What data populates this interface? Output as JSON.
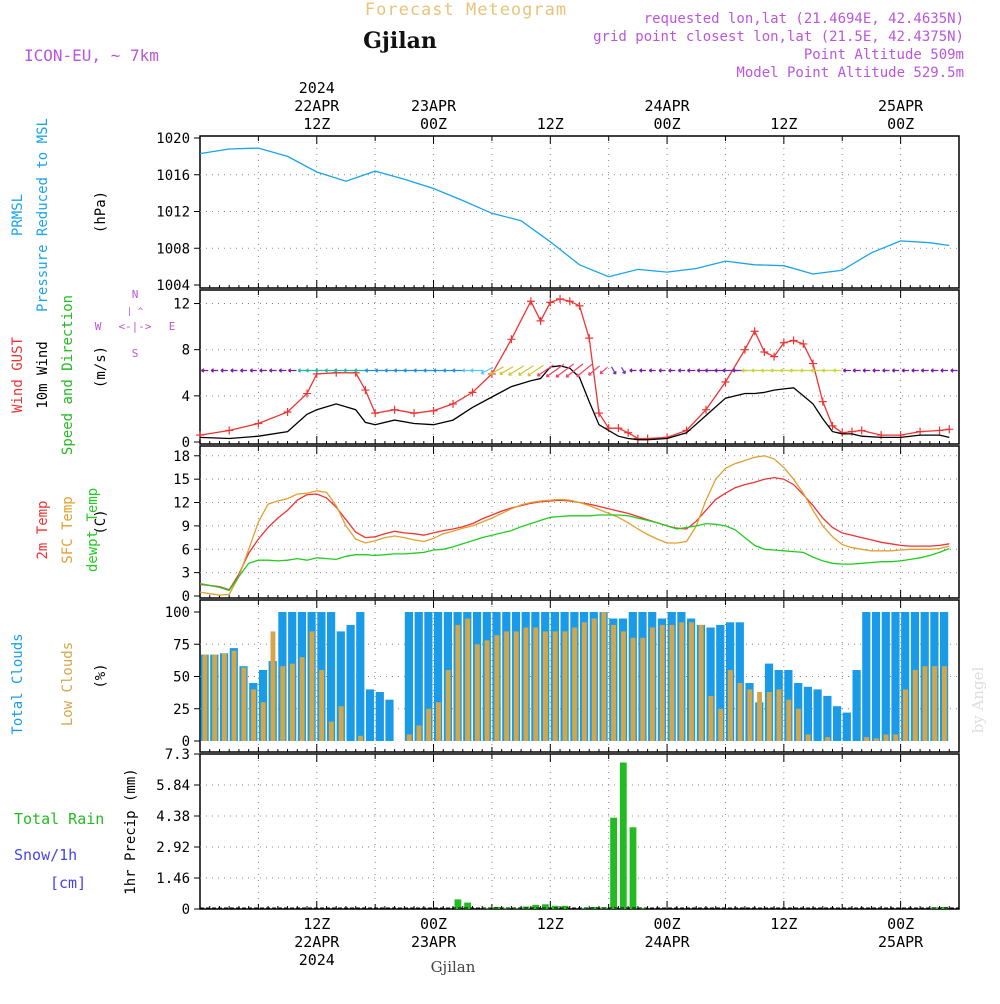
{
  "header": {
    "product_title": "Forecast Meteogram",
    "location": "Gjilan",
    "model": "ICON-EU, ~ 7km",
    "requested_point": "requested lon,lat (21.4694E, 42.4635N)",
    "grid_point": "grid point closest lon,lat (21.5E, 42.4375N)",
    "point_altitude": "Point Altitude 509m",
    "model_altitude": "Model Point Altitude 529.5m",
    "footer_location": "Gjilan",
    "credit": "by Angel"
  },
  "colors": {
    "pressure": "#1aa3e8",
    "wind_gust": "#ee3333",
    "wind_speed": "#000000",
    "direction_label": "#22bb22",
    "t2m": "#ee3333",
    "sfc": "#e0a030",
    "dewpoint": "#22cc22",
    "total_clouds": "#1a9be8",
    "low_clouds": "#d4a64a",
    "rain": "#22bb22",
    "snow_label": "#4444ee",
    "meta": "#bb55dd",
    "title_faded": "#e8c47a",
    "compass": "#bb55dd"
  },
  "time_axis": {
    "labels_top": [
      {
        "t": 12,
        "lines": [
          "2024",
          "22APR",
          "12Z"
        ]
      },
      {
        "t": 24,
        "lines": [
          "23APR",
          "00Z"
        ]
      },
      {
        "t": 36,
        "lines": [
          "12Z"
        ]
      },
      {
        "t": 48,
        "lines": [
          "24APR",
          "00Z"
        ]
      },
      {
        "t": 60,
        "lines": [
          "12Z"
        ]
      },
      {
        "t": 72,
        "lines": [
          "25APR",
          "00Z"
        ]
      }
    ],
    "labels_bottom": [
      {
        "t": 12,
        "lines": [
          "12Z",
          "22APR",
          "2024"
        ]
      },
      {
        "t": 24,
        "lines": [
          "00Z",
          "23APR"
        ]
      },
      {
        "t": 36,
        "lines": [
          "12Z"
        ]
      },
      {
        "t": 48,
        "lines": [
          "00Z",
          "24APR"
        ]
      },
      {
        "t": 60,
        "lines": [
          "12Z"
        ]
      },
      {
        "t": 72,
        "lines": [
          "00Z",
          "25APR"
        ]
      }
    ]
  },
  "compass": {
    "n": "N",
    "s": "S",
    "e": "E",
    "w": "W"
  },
  "chart_data": [
    {
      "type": "line",
      "title": "",
      "left_labels": [
        [
          "PRMSL"
        ],
        [
          "Pressure Reduced to MSL"
        ]
      ],
      "ylabel": "(hPa)",
      "x_hours": [
        0,
        3,
        6,
        9,
        12,
        15,
        18,
        21,
        24,
        27,
        30,
        33,
        36,
        39,
        42,
        45,
        48,
        51,
        54,
        57,
        60,
        63,
        66,
        69,
        72,
        75,
        77
      ],
      "series": [
        {
          "values": [
            1018.3,
            1018.8,
            1018.9,
            1018.0,
            1016.3,
            1015.3,
            1016.4,
            1015.5,
            1014.5,
            1013.2,
            1011.8,
            1011.0,
            1008.7,
            1006.2,
            1004.9,
            1005.7,
            1005.4,
            1005.8,
            1006.6,
            1006.2,
            1006.1,
            1005.2,
            1005.6,
            1007.5,
            1008.8,
            1008.6,
            1008.3
          ]
        }
      ],
      "ylim": [
        1004,
        1020
      ],
      "yticks": [
        1004,
        1008,
        1012,
        1016,
        1020
      ],
      "grid": true
    },
    {
      "type": "line",
      "title": "",
      "left_labels": [
        [
          "Wind GUST"
        ],
        [
          "10m Wind"
        ],
        [
          "Speed and Direction"
        ]
      ],
      "ylabel": "(m/s)",
      "x_hours": [
        0,
        3,
        6,
        9,
        11,
        12,
        14,
        16,
        17,
        18,
        20,
        22,
        24,
        26,
        28,
        30,
        32,
        34,
        35,
        36,
        37,
        38,
        39,
        40,
        41,
        42,
        43,
        44,
        45,
        46,
        48,
        50,
        52,
        54,
        56,
        57,
        58,
        59,
        60,
        61,
        62,
        63,
        64,
        65,
        66,
        67,
        68,
        70,
        72,
        74,
        76,
        77
      ],
      "series": [
        {
          "name": "Wind GUST",
          "values": [
            0.6,
            1.0,
            1.6,
            2.6,
            4.2,
            5.9,
            6.0,
            6.0,
            4.5,
            2.5,
            2.8,
            2.5,
            2.7,
            3.3,
            4.3,
            5.9,
            8.9,
            12.2,
            10.5,
            12.1,
            12.4,
            12.2,
            11.8,
            9.0,
            2.5,
            1.2,
            1.2,
            0.8,
            0.3,
            0.3,
            0.4,
            1.0,
            2.8,
            5.2,
            8.0,
            9.6,
            7.8,
            7.4,
            8.6,
            8.8,
            8.5,
            6.8,
            3.5,
            1.4,
            0.8,
            0.9,
            1.0,
            0.6,
            0.6,
            0.9,
            1.0,
            1.1
          ]
        },
        {
          "name": "10m Wind",
          "values": [
            0.4,
            0.3,
            0.5,
            0.9,
            2.4,
            2.8,
            3.3,
            2.8,
            1.7,
            1.5,
            1.9,
            1.6,
            1.5,
            1.9,
            3.0,
            3.9,
            4.8,
            5.3,
            5.5,
            6.5,
            6.6,
            6.4,
            5.6,
            3.5,
            1.5,
            1.0,
            0.5,
            0.3,
            0.2,
            0.2,
            0.3,
            0.8,
            2.3,
            3.8,
            4.2,
            4.2,
            4.3,
            4.5,
            4.6,
            4.7,
            4.0,
            3.3,
            2.0,
            0.9,
            0.7,
            0.7,
            0.5,
            0.4,
            0.4,
            0.6,
            0.6,
            0.4
          ]
        }
      ],
      "ylim": [
        0,
        13
      ],
      "yticks": [
        0,
        4,
        8,
        12
      ],
      "grid": true
    },
    {
      "type": "line",
      "title": "",
      "left_labels": [
        [
          "2m Temp"
        ],
        [
          "SFC Temp"
        ],
        [
          "dewpt Temp"
        ]
      ],
      "ylabel": "(C)",
      "x_hours": [
        0,
        2,
        3,
        4,
        5,
        6,
        7,
        8,
        9,
        10,
        11,
        12,
        13,
        14,
        15,
        16,
        17,
        18,
        19,
        20,
        21,
        22,
        23,
        24,
        25,
        26,
        27,
        28,
        29,
        30,
        31,
        32,
        33,
        34,
        35,
        36,
        37,
        38,
        39,
        40,
        41,
        42,
        43,
        44,
        45,
        46,
        47,
        48,
        49,
        50,
        51,
        52,
        53,
        54,
        55,
        56,
        57,
        58,
        59,
        60,
        61,
        62,
        63,
        64,
        65,
        66,
        67,
        68,
        69,
        70,
        71,
        72,
        73,
        74,
        75,
        76,
        77
      ],
      "series": [
        {
          "name": "2m Temp",
          "values": [
            1.5,
            1.2,
            0.8,
            2.8,
            5.5,
            7.3,
            8.8,
            10.0,
            11.0,
            12.3,
            13.0,
            13.1,
            12.6,
            11.4,
            9.8,
            8.2,
            7.5,
            7.6,
            8.0,
            8.3,
            8.1,
            8.0,
            7.8,
            8.1,
            8.4,
            8.6,
            8.9,
            9.3,
            9.9,
            10.4,
            10.9,
            11.3,
            11.6,
            11.9,
            12.1,
            12.2,
            12.3,
            12.2,
            12.0,
            11.8,
            11.5,
            11.2,
            10.9,
            10.6,
            10.2,
            9.8,
            9.4,
            9.0,
            8.7,
            8.6,
            9.6,
            11.0,
            12.4,
            13.2,
            13.9,
            14.3,
            14.6,
            15.0,
            15.2,
            15.0,
            14.3,
            13.0,
            11.6,
            10.0,
            8.8,
            8.1,
            7.8,
            7.5,
            7.2,
            6.9,
            6.7,
            6.5,
            6.4,
            6.4,
            6.4,
            6.5,
            6.7
          ]
        },
        {
          "name": "SFC Temp",
          "values": [
            0.5,
            0.1,
            0.2,
            2.5,
            6.0,
            9.5,
            11.8,
            12.2,
            12.5,
            13.1,
            13.2,
            13.5,
            13.3,
            11.6,
            9.0,
            7.3,
            6.8,
            7.1,
            7.5,
            7.7,
            7.5,
            7.2,
            7.0,
            7.4,
            8.0,
            8.3,
            8.7,
            9.0,
            9.5,
            10.0,
            10.6,
            11.2,
            11.7,
            12.0,
            12.2,
            12.3,
            12.4,
            12.3,
            12.0,
            11.6,
            11.1,
            10.6,
            10.1,
            9.4,
            8.6,
            7.9,
            7.3,
            6.8,
            6.8,
            7.0,
            9.0,
            12.3,
            15.0,
            16.4,
            17.0,
            17.4,
            17.8,
            18.0,
            17.6,
            16.5,
            15.0,
            13.2,
            11.0,
            9.0,
            7.6,
            6.6,
            6.2,
            6.0,
            5.8,
            5.8,
            5.8,
            5.9,
            6.0,
            6.0,
            6.0,
            6.1,
            6.4
          ]
        },
        {
          "name": "dewpt Temp",
          "values": [
            1.6,
            1.1,
            0.7,
            2.5,
            4.2,
            4.6,
            4.6,
            4.5,
            4.6,
            4.8,
            4.6,
            4.9,
            4.8,
            4.7,
            5.1,
            5.3,
            5.3,
            5.2,
            5.3,
            5.4,
            5.4,
            5.5,
            5.6,
            5.9,
            6.0,
            6.3,
            6.7,
            7.1,
            7.5,
            7.8,
            8.1,
            8.4,
            8.9,
            9.3,
            9.7,
            10.1,
            10.2,
            10.3,
            10.3,
            10.3,
            10.4,
            10.4,
            10.4,
            10.3,
            10.0,
            9.7,
            9.4,
            9.0,
            8.6,
            8.8,
            9.0,
            9.3,
            9.2,
            9.0,
            8.5,
            7.5,
            6.5,
            6.0,
            5.9,
            5.8,
            5.7,
            5.6,
            5.0,
            4.5,
            4.2,
            4.1,
            4.1,
            4.2,
            4.3,
            4.4,
            4.4,
            4.5,
            4.7,
            4.9,
            5.2,
            5.6,
            6.1
          ]
        }
      ],
      "ylim": [
        0,
        19
      ],
      "yticks": [
        0,
        3,
        6,
        9,
        12,
        15,
        18
      ],
      "grid": true
    },
    {
      "type": "bar",
      "title": "",
      "left_labels": [
        [
          "Total Clouds"
        ],
        [
          "Low Clouds"
        ]
      ],
      "ylabel": "(%)",
      "x_start_hour": 0,
      "x_step_hours": 1,
      "series": [
        {
          "name": "Total Clouds",
          "values": [
            67,
            67,
            68,
            72,
            58,
            45,
            55,
            62,
            100,
            100,
            100,
            100,
            100,
            100,
            85,
            90,
            100,
            40,
            38,
            32,
            0,
            100,
            100,
            100,
            100,
            100,
            100,
            100,
            100,
            100,
            100,
            100,
            100,
            100,
            100,
            100,
            100,
            100,
            100,
            100,
            100,
            100,
            95,
            95,
            100,
            100,
            100,
            95,
            100,
            100,
            95,
            90,
            88,
            90,
            92,
            92,
            45,
            30,
            60,
            55,
            55,
            45,
            42,
            40,
            35,
            27,
            22,
            55,
            100,
            100,
            100,
            100,
            100,
            100,
            100,
            100,
            100
          ]
        },
        {
          "name": "Low Clouds",
          "values": [
            67,
            67,
            68,
            70,
            57,
            40,
            30,
            85,
            58,
            60,
            65,
            85,
            55,
            15,
            27,
            0,
            4,
            0,
            0,
            0,
            0,
            5,
            12,
            25,
            30,
            55,
            90,
            95,
            75,
            78,
            82,
            85,
            85,
            88,
            88,
            85,
            85,
            85,
            88,
            92,
            95,
            100,
            90,
            85,
            80,
            80,
            88,
            90,
            90,
            92,
            92,
            90,
            35,
            25,
            55,
            45,
            40,
            38,
            38,
            40,
            32,
            25,
            5,
            0,
            3,
            0,
            0,
            0,
            3,
            2,
            5,
            5,
            40,
            55,
            58,
            58,
            58
          ]
        }
      ],
      "ylim": [
        0,
        100
      ],
      "yticks": [
        0,
        25,
        50,
        75,
        100
      ],
      "grid": true
    },
    {
      "type": "bar",
      "title": "",
      "left_labels": [
        [
          "Total",
          "Rain"
        ],
        [
          "Snow/1h"
        ],
        [
          "[cm]"
        ]
      ],
      "ylabel": "1hr Precip (mm)",
      "x_start_hour": 0,
      "x_step_hours": 1,
      "series": [
        {
          "name": "Total Rain",
          "values": [
            0,
            0,
            0,
            0,
            0,
            0,
            0,
            0,
            0,
            0,
            0,
            0,
            0,
            0,
            0,
            0,
            0,
            0,
            0,
            0,
            0,
            0,
            0,
            0,
            0,
            0,
            0.45,
            0.3,
            0,
            0.05,
            0.1,
            0.05,
            0.05,
            0.12,
            0.2,
            0.22,
            0.15,
            0.15,
            0,
            0.05,
            0.1,
            0.08,
            4.3,
            6.9,
            3.85,
            0.05,
            0,
            0,
            0,
            0,
            0,
            0,
            0,
            0,
            0,
            0,
            0,
            0,
            0,
            0,
            0,
            0,
            0,
            0,
            0,
            0,
            0,
            0,
            0,
            0,
            0,
            0,
            0,
            0,
            0,
            0.08,
            0.1
          ]
        }
      ],
      "ylim": [
        0,
        7.3
      ],
      "yticks": [
        0,
        1.46,
        2.92,
        4.38,
        5.84,
        7.3
      ],
      "grid": true
    }
  ]
}
